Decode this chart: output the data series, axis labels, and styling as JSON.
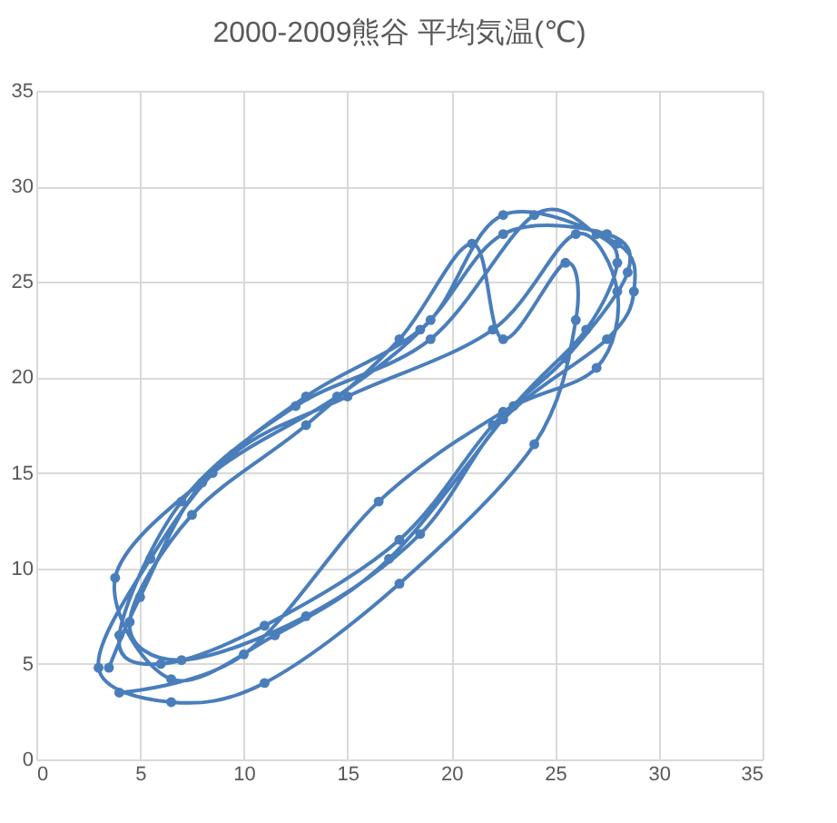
{
  "chart_data": {
    "type": "line",
    "title": "2000-2009熊谷 平均気温(℃)",
    "x": [
      3.5,
      5,
      8,
      13,
      18.5,
      22.5,
      27.5,
      28.5,
      25.5,
      22,
      17.5,
      11,
      6,
      4,
      7,
      12.5,
      19,
      24,
      27,
      28,
      26.5,
      23,
      17,
      11.5,
      6.5,
      3.8,
      8.5,
      14.5,
      19,
      22.5,
      28,
      28.8,
      27.5,
      22.5,
      18.5,
      13,
      7,
      4.5,
      7.5,
      13,
      17.5,
      21,
      22.5,
      25.5,
      26,
      24,
      17.5,
      11,
      6.5,
      3,
      5.5,
      9.5,
      15,
      22,
      26,
      28,
      27,
      22.5,
      16.5,
      10,
      4
    ],
    "series": [
      {
        "color": "#4a7ebb",
        "values": [
          4.8,
          8.5,
          14.5,
          19,
          22.5,
          27.5,
          27.5,
          25.5,
          21,
          17.5,
          11.5,
          7,
          5,
          6.5,
          13.5,
          18.5,
          22,
          28.5,
          27.5,
          26,
          22.5,
          18.5,
          10.5,
          6.5,
          4.2,
          9.5,
          15,
          19,
          23,
          28.5,
          27,
          24.5,
          22,
          17.8,
          11.8,
          7.5,
          5.2,
          7.2,
          12.8,
          17.5,
          22,
          27,
          22,
          26,
          23,
          16.5,
          9.2,
          4,
          3,
          4.8,
          10.5,
          16,
          19,
          22.5,
          27.5,
          24.5,
          20.5,
          18.2,
          13.5,
          5.5,
          3.5
        ]
      }
    ],
    "xlim": [
      0,
      35
    ],
    "ylim": [
      0,
      35
    ],
    "xticks": [
      0,
      5,
      10,
      15,
      20,
      25,
      30,
      35
    ],
    "yticks": [
      0,
      5,
      10,
      15,
      20,
      25,
      30,
      35
    ],
    "grid": true,
    "marker": "circle",
    "line_style": "solid",
    "legend": false
  }
}
